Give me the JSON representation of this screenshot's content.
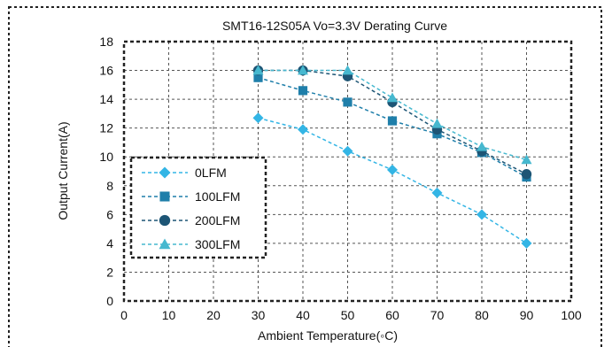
{
  "chart_data": {
    "type": "line",
    "title": "SMT16-12S05A Vo=3.3V Derating Curve",
    "xlabel": "Ambient Temperature(◦C)",
    "ylabel": "Output Current(A)",
    "xlim": [
      0,
      100
    ],
    "ylim": [
      0,
      18
    ],
    "x_ticks": [
      0,
      10,
      20,
      30,
      40,
      50,
      60,
      70,
      80,
      90,
      100
    ],
    "y_ticks": [
      0,
      2,
      4,
      6,
      8,
      10,
      12,
      14,
      16,
      18
    ],
    "grid": true,
    "legend_position": "bottom-left",
    "series": [
      {
        "name": "0LFM",
        "marker": "diamond",
        "color": "#33b5e5",
        "x": [
          30,
          40,
          50,
          60,
          70,
          80,
          90
        ],
        "y": [
          12.7,
          11.9,
          10.4,
          9.1,
          7.5,
          6.0,
          4.0
        ]
      },
      {
        "name": "100LFM",
        "marker": "square",
        "color": "#1f7faa",
        "x": [
          30,
          40,
          50,
          60,
          70,
          80,
          90
        ],
        "y": [
          15.5,
          14.6,
          13.8,
          12.5,
          11.6,
          10.3,
          8.6
        ]
      },
      {
        "name": "200LFM",
        "marker": "circle",
        "color": "#1d5575",
        "x": [
          30,
          40,
          50,
          60,
          70,
          80,
          90
        ],
        "y": [
          16.0,
          16.0,
          15.6,
          13.8,
          11.9,
          10.4,
          8.8
        ]
      },
      {
        "name": "300LFM",
        "marker": "triangle",
        "color": "#46b8cf",
        "x": [
          30,
          40,
          50,
          60,
          70,
          80,
          90
        ],
        "y": [
          16.0,
          16.0,
          16.0,
          14.1,
          12.3,
          10.7,
          9.8
        ]
      }
    ]
  }
}
